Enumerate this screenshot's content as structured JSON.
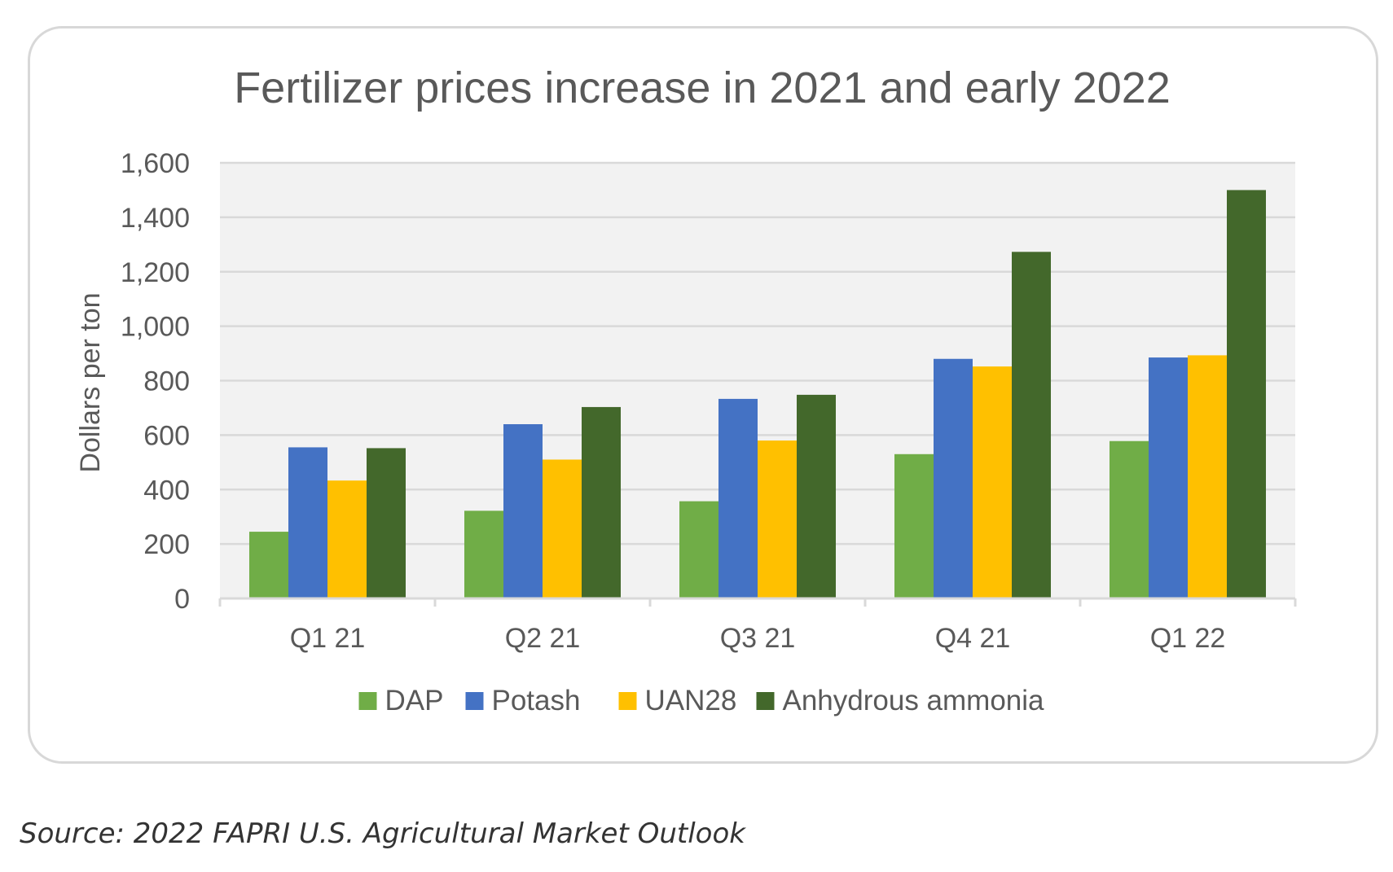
{
  "chart_data": {
    "type": "bar",
    "title": "Fertilizer prices increase in 2021 and early 2022",
    "xlabel": "",
    "ylabel": "Dollars per ton",
    "ylim": [
      0,
      1600
    ],
    "yticks": [
      "0",
      "200",
      "400",
      "600",
      "800",
      "1,000",
      "1,200",
      "1,400",
      "1,600"
    ],
    "categories": [
      "Q1 21",
      "Q2 21",
      "Q3 21",
      "Q4 21",
      "Q1 22"
    ],
    "series": [
      {
        "name": "DAP",
        "color": "#70ad47",
        "values": [
          245,
          322,
          357,
          530,
          578
        ]
      },
      {
        "name": "Potash",
        "color": "#4472c4",
        "values": [
          555,
          640,
          733,
          880,
          885
        ]
      },
      {
        "name": "UAN28",
        "color": "#ffc000",
        "values": [
          433,
          510,
          580,
          852,
          893
        ]
      },
      {
        "name": "Anhydrous ammonia",
        "color": "#43682b",
        "values": [
          552,
          703,
          748,
          1273,
          1500
        ]
      }
    ],
    "grid": true,
    "legend_position": "bottom"
  },
  "source_note": "Source: 2022 FAPRI U.S. Agricultural Market Outlook"
}
